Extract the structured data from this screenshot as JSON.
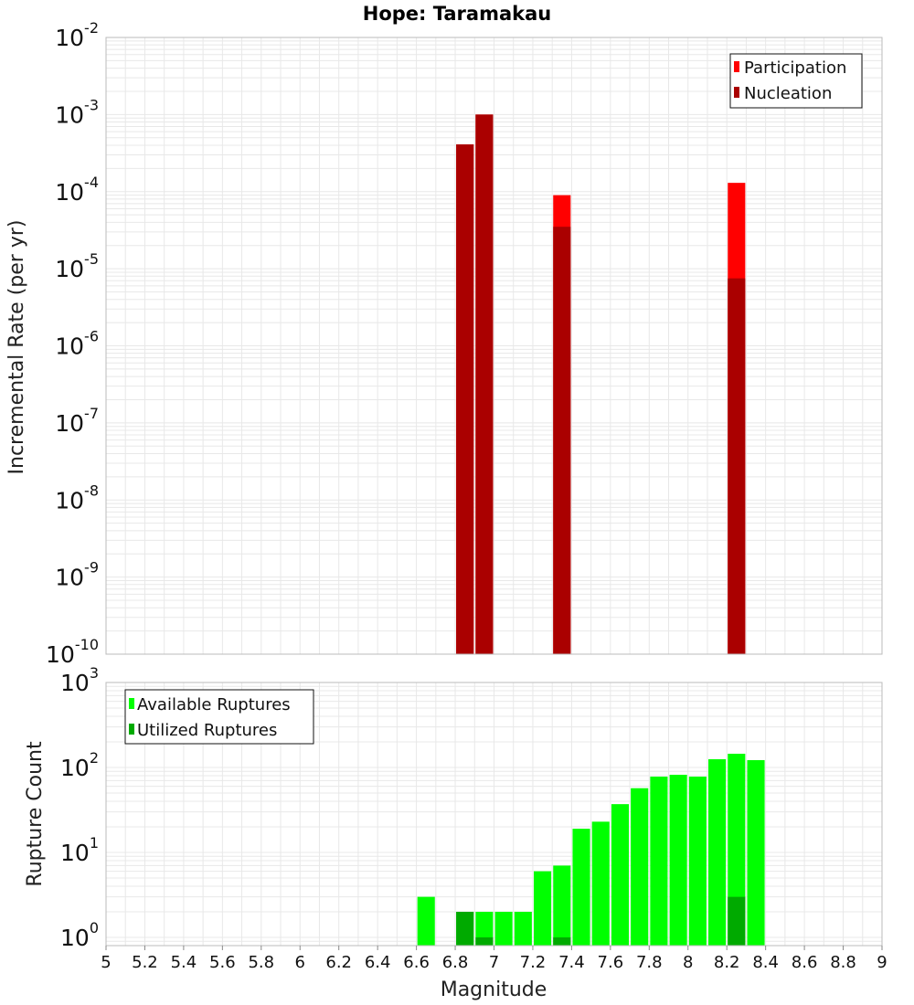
{
  "colors": {
    "participation": "#ff0000",
    "nucleation": "#aa0000",
    "available": "#00ff00",
    "utilized": "#00aa00",
    "grid": "#e8e8e8",
    "frame": "#bbbbbb"
  },
  "chart_data": [
    {
      "type": "bar",
      "title": "Hope: Taramakau",
      "xlabel": "",
      "ylabel": "Incremental Rate (per yr)",
      "xlim": [
        5,
        9
      ],
      "ylim": [
        1e-10,
        0.01
      ],
      "yscale": "log",
      "grid": true,
      "legend_position": "top-right",
      "y_tick_exponents": [
        "-10",
        "-9",
        "-8",
        "-7",
        "-6",
        "-5",
        "-4",
        "-3",
        "-2"
      ],
      "series": [
        {
          "name": "Participation",
          "color": "#ff0000",
          "x": [
            6.85,
            6.95,
            7.35,
            8.25
          ],
          "values": [
            0.00041,
            0.001,
            9e-05,
            0.00013
          ]
        },
        {
          "name": "Nucleation",
          "color": "#aa0000",
          "x": [
            6.85,
            6.95,
            7.35,
            8.25
          ],
          "values": [
            0.00041,
            0.001,
            3.5e-05,
            7.5e-06
          ]
        }
      ]
    },
    {
      "type": "bar",
      "title": "",
      "xlabel": "Magnitude",
      "ylabel": "Rupture Count",
      "xlim": [
        5,
        9
      ],
      "ylim": [
        0.8,
        1000
      ],
      "yscale": "log",
      "grid": true,
      "legend_position": "top-left",
      "x_ticks": [
        "5",
        "5.2",
        "5.4",
        "5.6",
        "5.8",
        "6",
        "6.2",
        "6.4",
        "6.6",
        "6.8",
        "7",
        "7.2",
        "7.4",
        "7.6",
        "7.8",
        "8",
        "8.2",
        "8.4",
        "8.6",
        "8.8",
        "9"
      ],
      "y_tick_exponents": [
        "0",
        "1",
        "2",
        "3"
      ],
      "series": [
        {
          "name": "Available Ruptures",
          "color": "#00ff00",
          "x": [
            6.65,
            6.85,
            6.95,
            7.05,
            7.15,
            7.25,
            7.35,
            7.45,
            7.55,
            7.65,
            7.75,
            7.85,
            7.95,
            8.05,
            8.15,
            8.25,
            8.35
          ],
          "values": [
            3,
            2,
            2,
            2,
            2,
            6,
            7,
            19,
            23,
            37,
            57,
            78,
            82,
            78,
            125,
            145,
            122
          ]
        },
        {
          "name": "Utilized Ruptures",
          "color": "#00aa00",
          "x": [
            6.85,
            6.95,
            7.35,
            8.25
          ],
          "values": [
            2,
            1,
            1,
            3
          ]
        }
      ]
    }
  ]
}
